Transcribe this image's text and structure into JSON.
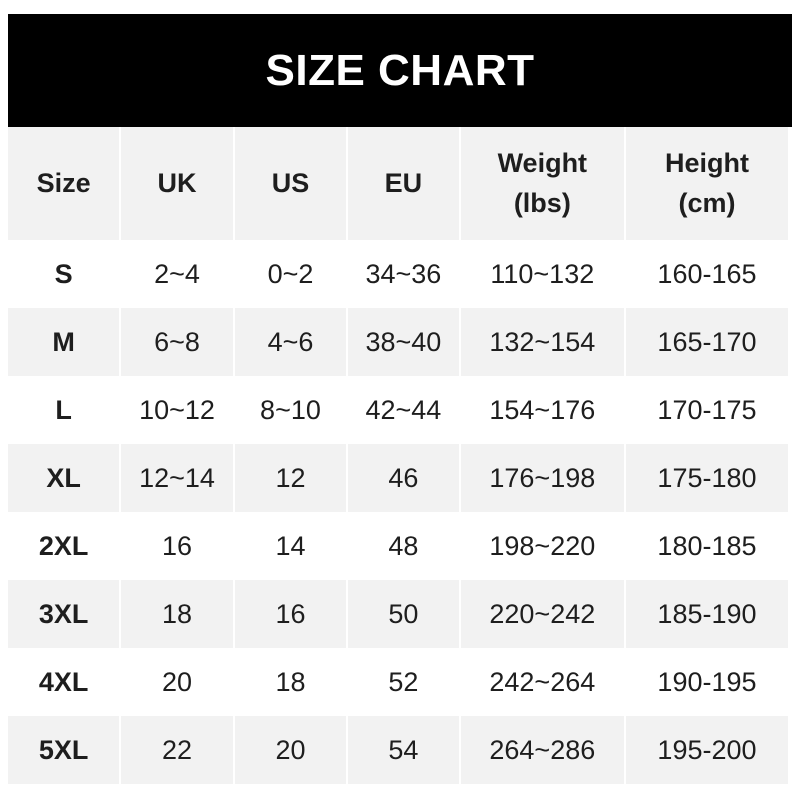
{
  "title": "SIZE CHART",
  "columns": [
    "Size",
    "UK",
    "US",
    "EU",
    "Weight\n(lbs)",
    "Height\n(cm)"
  ],
  "rows": [
    [
      "S",
      "2~4",
      "0~2",
      "34~36",
      "110~132",
      "160-165"
    ],
    [
      "M",
      "6~8",
      "4~6",
      "38~40",
      "132~154",
      "165-170"
    ],
    [
      "L",
      "10~12",
      "8~10",
      "42~44",
      "154~176",
      "170-175"
    ],
    [
      "XL",
      "12~14",
      "12",
      "46",
      "176~198",
      "175-180"
    ],
    [
      "2XL",
      "16",
      "14",
      "48",
      "198~220",
      "180-185"
    ],
    [
      "3XL",
      "18",
      "16",
      "50",
      "220~242",
      "185-190"
    ],
    [
      "4XL",
      "20",
      "18",
      "52",
      "242~264",
      "190-195"
    ],
    [
      "5XL",
      "22",
      "20",
      "54",
      "264~286",
      "195-200"
    ]
  ],
  "colors": {
    "header_bg": "#000000",
    "stripe": "#f2f2f2",
    "text": "#1e1e1e"
  }
}
